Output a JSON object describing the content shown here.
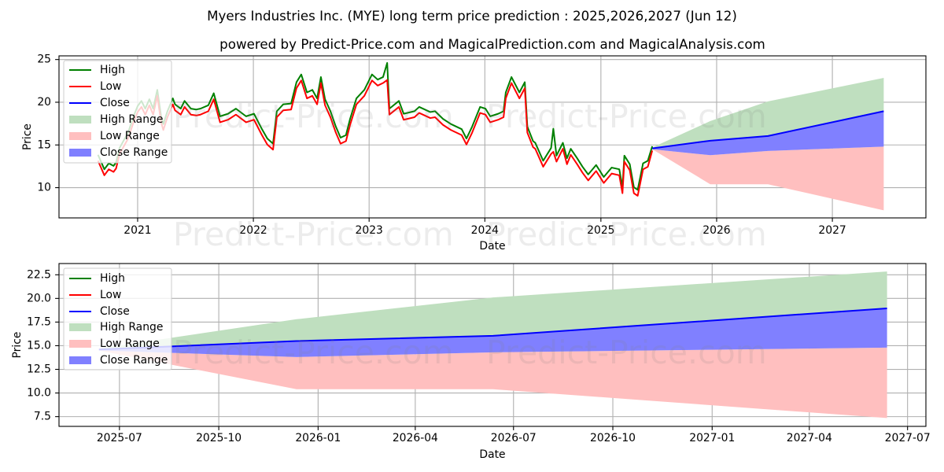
{
  "title": "Myers Industries Inc. (MYE) long term price prediction : 2025,2026,2027 (Jun 12)",
  "subtitle": "powered by Predict-Price.com and MagicalPrediction.com and MagicalAnalysis.com",
  "watermark": "Predict-Price.com",
  "colors": {
    "high": "#008000",
    "low": "#ff0000",
    "close": "#0000ff",
    "high_range": "#bfdfbf",
    "low_range": "#ffbfbf",
    "close_range": "#8080ff"
  },
  "legend": {
    "items": [
      {
        "label": "High",
        "kind": "line",
        "color_key": "high"
      },
      {
        "label": "Low",
        "kind": "line",
        "color_key": "low"
      },
      {
        "label": "Close",
        "kind": "line",
        "color_key": "close"
      },
      {
        "label": "High Range",
        "kind": "patch",
        "color_key": "high_range"
      },
      {
        "label": "Low Range",
        "kind": "patch",
        "color_key": "low_range"
      },
      {
        "label": "Close Range",
        "kind": "patch",
        "color_key": "close_range"
      }
    ]
  },
  "chart_data": [
    {
      "type": "line",
      "title": "powered by Predict-Price.com and MagicalPrediction.com and MagicalAnalysis.com",
      "xlabel": "Date",
      "ylabel": "Price",
      "xlim": [
        "2020-04-28",
        "2027-10-23"
      ],
      "ylim": [
        6.46,
        25.43
      ],
      "grid": true,
      "legend_position": "top-left",
      "xticks": [
        {
          "value": "2021-01-01",
          "label": "2021"
        },
        {
          "value": "2022-01-01",
          "label": "2022"
        },
        {
          "value": "2023-01-01",
          "label": "2023"
        },
        {
          "value": "2024-01-01",
          "label": "2024"
        },
        {
          "value": "2025-01-01",
          "label": "2025"
        },
        {
          "value": "2026-01-01",
          "label": "2026"
        },
        {
          "value": "2027-01-01",
          "label": "2027"
        }
      ],
      "yticks": [
        {
          "value": 10,
          "label": "10"
        },
        {
          "value": 15,
          "label": "15"
        },
        {
          "value": 20,
          "label": "20"
        },
        {
          "value": 25,
          "label": "25"
        }
      ],
      "history": {
        "dates": [
          "2020-08-29",
          "2020-09-18",
          "2020-10-02",
          "2020-10-17",
          "2020-10-25",
          "2020-11-05",
          "2020-12-02",
          "2020-12-19",
          "2021-01-01",
          "2021-01-13",
          "2021-01-25",
          "2021-02-07",
          "2021-02-19",
          "2021-03-04",
          "2021-03-16",
          "2021-03-23",
          "2021-04-05",
          "2021-04-22",
          "2021-04-29",
          "2021-05-17",
          "2021-05-29",
          "2021-06-18",
          "2021-07-05",
          "2021-07-18",
          "2021-08-12",
          "2021-08-29",
          "2021-09-18",
          "2021-10-13",
          "2021-11-07",
          "2021-12-09",
          "2022-01-03",
          "2022-01-28",
          "2022-02-14",
          "2022-03-04",
          "2022-03-16",
          "2022-04-05",
          "2022-04-30",
          "2022-05-17",
          "2022-06-01",
          "2022-06-19",
          "2022-07-06",
          "2022-07-21",
          "2022-08-02",
          "2022-08-15",
          "2022-09-01",
          "2022-09-18",
          "2022-10-03",
          "2022-10-20",
          "2022-11-02",
          "2022-11-22",
          "2022-12-17",
          "2023-01-10",
          "2023-01-28",
          "2023-02-14",
          "2023-02-27",
          "2023-03-06",
          "2023-04-05",
          "2023-04-20",
          "2023-05-24",
          "2023-06-08",
          "2023-07-13",
          "2023-07-28",
          "2023-08-22",
          "2023-09-16",
          "2023-10-20",
          "2023-11-04",
          "2023-11-22",
          "2023-12-17",
          "2024-01-03",
          "2024-01-18",
          "2024-02-12",
          "2024-02-29",
          "2024-03-07",
          "2024-03-25",
          "2024-04-19",
          "2024-05-06",
          "2024-05-14",
          "2024-06-01",
          "2024-06-08",
          "2024-07-03",
          "2024-07-28",
          "2024-08-04",
          "2024-08-14",
          "2024-09-03",
          "2024-09-16",
          "2024-09-28",
          "2024-10-18",
          "2024-11-04",
          "2024-11-22",
          "2024-12-17",
          "2025-01-10",
          "2025-02-04",
          "2025-02-28",
          "2025-03-10",
          "2025-03-16",
          "2025-04-02",
          "2025-04-15",
          "2025-04-27",
          "2025-05-14",
          "2025-05-29",
          "2025-06-12"
        ],
        "high": [
          13.85,
          12.15,
          12.85,
          12.55,
          12.95,
          14.65,
          16.45,
          18.35,
          19.55,
          20.15,
          19.25,
          20.35,
          19.25,
          21.45,
          18.35,
          17.45,
          18.95,
          20.45,
          19.75,
          19.25,
          20.15,
          19.25,
          19.15,
          19.25,
          19.65,
          21.05,
          18.35,
          18.65,
          19.25,
          18.35,
          18.65,
          16.85,
          15.75,
          15.15,
          18.95,
          19.75,
          19.85,
          22.35,
          23.25,
          21.15,
          21.45,
          20.45,
          22.95,
          20.35,
          18.95,
          17.15,
          15.85,
          16.15,
          18.05,
          20.45,
          21.45,
          23.25,
          22.65,
          22.95,
          24.6,
          19.25,
          20.15,
          18.65,
          18.95,
          19.45,
          18.85,
          18.95,
          18.05,
          17.45,
          16.85,
          15.75,
          17.15,
          19.45,
          19.25,
          18.35,
          18.65,
          18.95,
          21.15,
          22.95,
          21.15,
          22.35,
          17.15,
          15.45,
          15.25,
          13.15,
          14.65,
          16.9,
          13.75,
          15.25,
          13.45,
          14.55,
          13.45,
          12.45,
          11.55,
          12.65,
          11.25,
          12.35,
          12.15,
          10.05,
          13.75,
          12.75,
          10.05,
          9.75,
          12.85,
          13.15,
          14.85
        ],
        "low": [
          13.15,
          11.45,
          12.15,
          11.85,
          12.25,
          13.95,
          15.75,
          17.65,
          18.85,
          19.45,
          18.55,
          19.65,
          18.55,
          20.75,
          17.65,
          16.75,
          18.25,
          19.75,
          19.05,
          18.55,
          19.45,
          18.55,
          18.45,
          18.55,
          18.95,
          20.35,
          17.65,
          17.95,
          18.55,
          17.65,
          17.95,
          16.15,
          15.05,
          14.45,
          18.25,
          19.05,
          19.15,
          21.65,
          22.55,
          20.45,
          20.75,
          19.75,
          22.25,
          19.65,
          18.25,
          16.45,
          15.15,
          15.45,
          17.35,
          19.75,
          20.75,
          22.55,
          21.95,
          22.25,
          22.6,
          18.55,
          19.45,
          17.95,
          18.25,
          18.75,
          18.15,
          18.25,
          17.35,
          16.75,
          16.15,
          15.05,
          16.45,
          18.75,
          18.55,
          17.65,
          17.95,
          18.25,
          20.45,
          22.25,
          20.45,
          21.65,
          16.45,
          14.75,
          14.55,
          12.45,
          13.95,
          14.2,
          13.05,
          14.55,
          12.75,
          13.85,
          12.75,
          11.75,
          10.85,
          11.95,
          10.55,
          11.65,
          11.45,
          9.35,
          13.05,
          12.05,
          9.35,
          9.05,
          12.15,
          12.45,
          14.35
        ]
      },
      "forecast": {
        "dates": [
          "2025-06-12",
          "2025-12-12",
          "2026-06-12",
          "2027-06-12"
        ],
        "close": [
          14.6,
          15.5,
          16.05,
          18.95
        ],
        "high_range": {
          "upper": [
            14.7,
            17.8,
            20.1,
            22.85
          ],
          "lower": [
            14.6,
            15.5,
            16.05,
            18.95
          ]
        },
        "close_range": {
          "upper": [
            14.6,
            15.5,
            16.05,
            18.95
          ],
          "lower": [
            14.5,
            13.8,
            14.3,
            14.8
          ]
        },
        "low_range": {
          "upper": [
            14.5,
            13.8,
            14.3,
            14.8
          ],
          "lower": [
            14.5,
            10.4,
            10.4,
            7.35
          ]
        }
      }
    },
    {
      "type": "line",
      "title": "",
      "xlabel": "Date",
      "ylabel": "Price",
      "xlim": [
        "2025-05-06",
        "2027-07-18"
      ],
      "ylim": [
        6.47,
        23.69
      ],
      "grid": true,
      "legend_position": "top-left",
      "xticks": [
        {
          "value": "2025-07-01",
          "label": "2025-07"
        },
        {
          "value": "2025-10-01",
          "label": "2025-10"
        },
        {
          "value": "2026-01-01",
          "label": "2026-01"
        },
        {
          "value": "2026-04-01",
          "label": "2026-04"
        },
        {
          "value": "2026-07-01",
          "label": "2026-07"
        },
        {
          "value": "2026-10-01",
          "label": "2026-10"
        },
        {
          "value": "2027-01-01",
          "label": "2027-01"
        },
        {
          "value": "2027-04-01",
          "label": "2027-04"
        },
        {
          "value": "2027-07-01",
          "label": "2027-07"
        }
      ],
      "yticks": [
        {
          "value": 7.5,
          "label": "7.5"
        },
        {
          "value": 10.0,
          "label": "10.0"
        },
        {
          "value": 12.5,
          "label": "12.5"
        },
        {
          "value": 15.0,
          "label": "15.0"
        },
        {
          "value": 17.5,
          "label": "17.5"
        },
        {
          "value": 20.0,
          "label": "20.0"
        },
        {
          "value": 22.5,
          "label": "22.5"
        }
      ],
      "forecast": {
        "dates": [
          "2025-06-12",
          "2025-12-12",
          "2026-06-12",
          "2027-06-12"
        ],
        "close": [
          14.6,
          15.5,
          16.05,
          18.95
        ],
        "high_range": {
          "upper": [
            14.7,
            17.8,
            20.1,
            22.85
          ],
          "lower": [
            14.6,
            15.5,
            16.05,
            18.95
          ]
        },
        "close_range": {
          "upper": [
            14.6,
            15.5,
            16.05,
            18.95
          ],
          "lower": [
            14.5,
            13.8,
            14.3,
            14.8
          ]
        },
        "low_range": {
          "upper": [
            14.5,
            13.8,
            14.3,
            14.8
          ],
          "lower": [
            14.5,
            10.4,
            10.4,
            7.35
          ]
        }
      }
    }
  ]
}
